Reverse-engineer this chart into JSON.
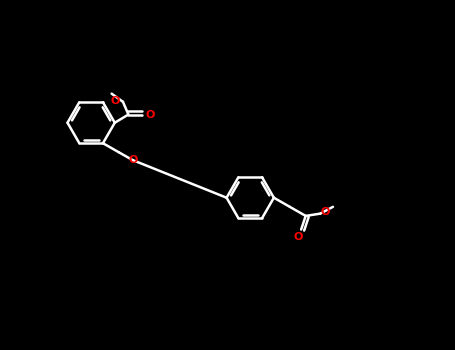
{
  "background_color": "#000000",
  "bond_color": "#ffffff",
  "oxygen_color": "#ff0000",
  "line_width": 1.8,
  "figsize": [
    4.55,
    3.5
  ],
  "dpi": 100,
  "xlim": [
    0,
    10
  ],
  "ylim": [
    0,
    7.7
  ]
}
